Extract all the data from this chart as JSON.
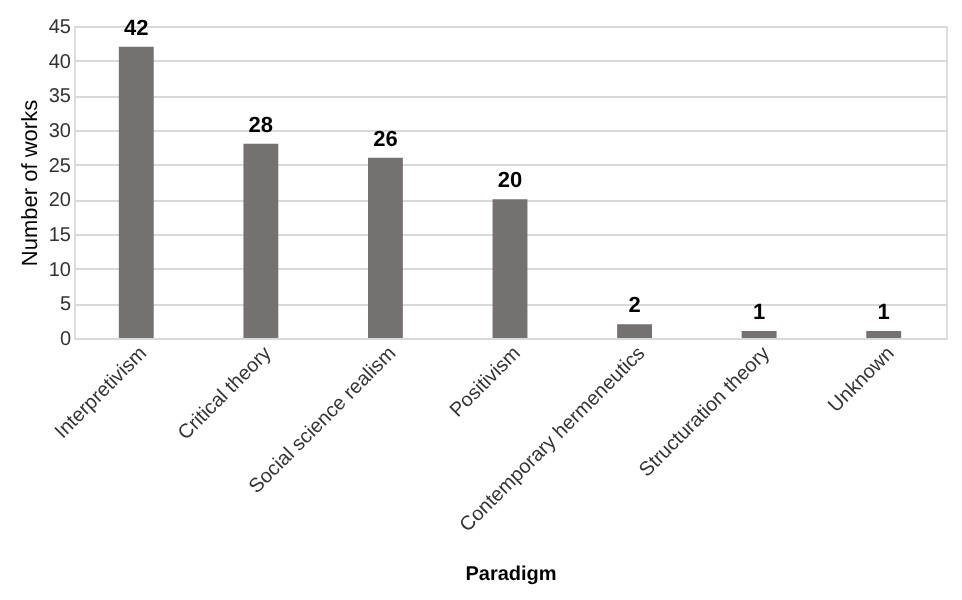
{
  "chart_data": {
    "type": "bar",
    "xlabel": "Paradigm",
    "ylabel": "Number of works",
    "categories": [
      "Interpretivism",
      "Critical theory",
      "Social science realism",
      "Positivism",
      "Contemporary hermeneutics",
      "Structuration theory",
      "Unknown"
    ],
    "values": [
      42,
      28,
      26,
      20,
      2,
      1,
      1
    ],
    "color": "#767171",
    "ylim": [
      0,
      45
    ],
    "yticks": [
      0,
      5,
      10,
      15,
      20,
      25,
      30,
      35,
      40,
      45
    ],
    "grid": "y",
    "data_labels": true
  }
}
